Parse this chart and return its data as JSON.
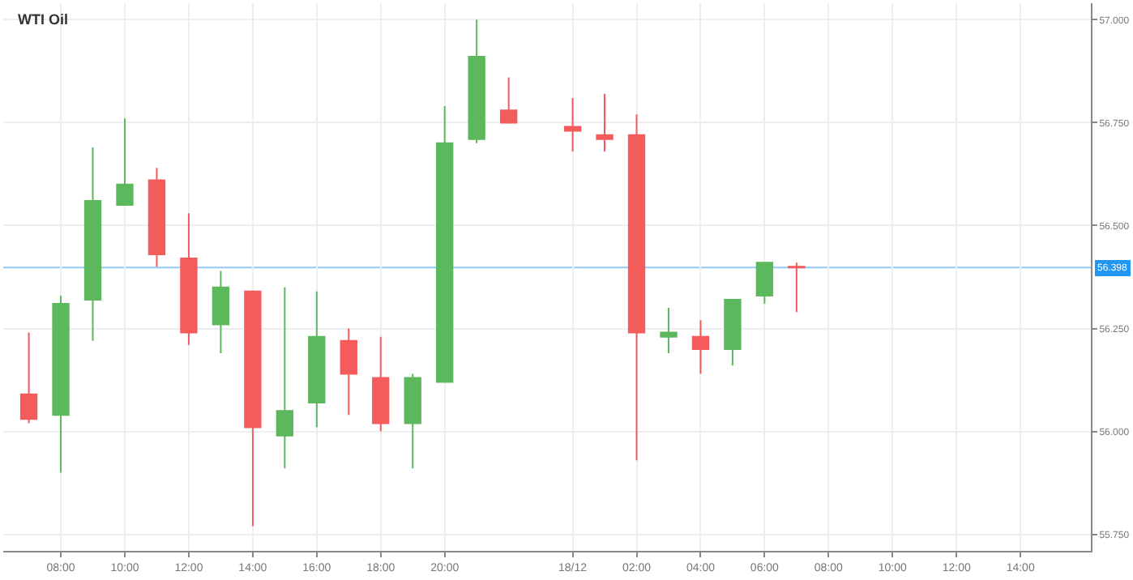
{
  "chart_data": {
    "type": "candlestick",
    "title": "WTI Oil",
    "x": [
      "--12-17T07:00",
      "--12-17T08:00",
      "--12-17T09:00",
      "--12-17T10:00",
      "--12-17T11:00",
      "--12-17T12:00",
      "--12-17T13:00",
      "--12-17T14:00",
      "--12-17T15:00",
      "--12-17T16:00",
      "--12-17T17:00",
      "--12-17T18:00",
      "--12-17T19:00",
      "--12-17T20:00",
      "--12-17T21:00",
      "--12-17T22:00",
      "--12-18T00:00",
      "--12-18T01:00",
      "--12-18T02:00",
      "--12-18T03:00",
      "--12-18T04:00",
      "--12-18T05:00",
      "--12-18T06:00",
      "--12-18T07:00"
    ],
    "ohlc": [
      [
        56.09,
        56.24,
        56.02,
        56.03
      ],
      [
        56.04,
        56.33,
        55.9,
        56.31
      ],
      [
        56.32,
        56.69,
        56.22,
        56.56
      ],
      [
        56.55,
        56.76,
        56.55,
        56.6
      ],
      [
        56.61,
        56.64,
        56.4,
        56.43
      ],
      [
        56.42,
        56.53,
        56.21,
        56.24
      ],
      [
        56.26,
        56.39,
        56.19,
        56.35
      ],
      [
        56.34,
        56.34,
        55.77,
        56.01
      ],
      [
        55.99,
        56.35,
        55.91,
        56.05
      ],
      [
        56.07,
        56.34,
        56.01,
        56.23
      ],
      [
        56.22,
        56.25,
        56.04,
        56.14
      ],
      [
        56.13,
        56.23,
        56.0,
        56.02
      ],
      [
        56.02,
        56.14,
        55.91,
        56.13
      ],
      [
        56.12,
        56.79,
        56.12,
        56.7
      ],
      [
        56.71,
        57.0,
        56.7,
        56.91
      ],
      [
        56.78,
        56.86,
        56.75,
        56.75
      ],
      [
        56.74,
        56.81,
        56.68,
        56.73
      ],
      [
        56.72,
        56.82,
        56.68,
        56.71
      ],
      [
        56.72,
        56.77,
        55.93,
        56.24
      ],
      [
        56.23,
        56.3,
        56.19,
        56.24
      ],
      [
        56.23,
        56.27,
        56.14,
        56.2
      ],
      [
        56.2,
        56.32,
        56.16,
        56.32
      ],
      [
        56.33,
        56.41,
        56.31,
        56.41
      ],
      [
        56.4,
        56.41,
        56.29,
        56.398
      ]
    ],
    "colors": [
      "#f45b5b",
      "#5cb85c",
      "#5cb85c",
      "#5cb85c",
      "#f45b5b",
      "#f45b5b",
      "#5cb85c",
      "#f45b5b",
      "#5cb85c",
      "#5cb85c",
      "#f45b5b",
      "#f45b5b",
      "#5cb85c",
      "#5cb85c",
      "#5cb85c",
      "#f45b5b",
      "#f45b5b",
      "#f45b5b",
      "#f45b5b",
      "#5cb85c",
      "#f45b5b",
      "#5cb85c",
      "#5cb85c",
      "#f45b5b"
    ],
    "xlim": [
      "--12-17T06:12",
      "--12-18T16:12"
    ],
    "xticks": [
      {
        "value": "--12-17T08:00",
        "label": "08:00"
      },
      {
        "value": "--12-17T10:00",
        "label": "10:00"
      },
      {
        "value": "--12-17T12:00",
        "label": "12:00"
      },
      {
        "value": "--12-17T14:00",
        "label": "14:00"
      },
      {
        "value": "--12-17T16:00",
        "label": "16:00"
      },
      {
        "value": "--12-17T18:00",
        "label": "18:00"
      },
      {
        "value": "--12-17T20:00",
        "label": "20:00"
      },
      {
        "value": "--12-18T00:00",
        "label": "18/12"
      },
      {
        "value": "--12-18T02:00",
        "label": "02:00"
      },
      {
        "value": "--12-18T04:00",
        "label": "04:00"
      },
      {
        "value": "--12-18T06:00",
        "label": "06:00"
      },
      {
        "value": "--12-18T08:00",
        "label": "08:00"
      },
      {
        "value": "--12-18T10:00",
        "label": "10:00"
      },
      {
        "value": "--12-18T12:00",
        "label": "12:00"
      },
      {
        "value": "--12-18T14:00",
        "label": "14:00"
      }
    ],
    "ylim": [
      55.71,
      57.04
    ],
    "yticks": [
      {
        "value": 55.75,
        "label": "55.750"
      },
      {
        "value": 56.0,
        "label": "56.000"
      },
      {
        "value": 56.25,
        "label": "56.250"
      },
      {
        "value": 56.5,
        "label": "56.500"
      },
      {
        "value": 56.75,
        "label": "56.750"
      },
      {
        "value": 57.0,
        "label": "57.000"
      }
    ],
    "ref_lines": [
      {
        "axis": "y",
        "value": 56.398,
        "label": "56.398",
        "color": "#2196f3"
      }
    ],
    "grid": true
  }
}
